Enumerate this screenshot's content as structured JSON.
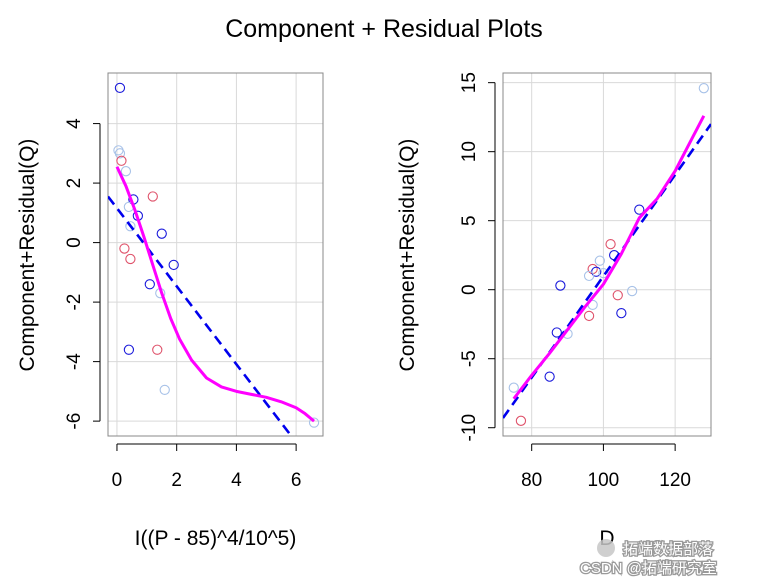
{
  "title": "Component + Residual Plots",
  "colors": {
    "blue": "#1a1adb",
    "red": "#df536b",
    "lightblue": "#a8c2e8",
    "dashed": "#0000ee",
    "smooth": "#ff00ff",
    "grid": "#d9d9d9",
    "frame": "#888888"
  },
  "watermark": {
    "line1": "拓端数据部落",
    "line2": "CSDN @拓端研究室"
  },
  "chart_data": [
    {
      "type": "scatter",
      "xlabel": "I((P - 85)^4/10^5)",
      "ylabel": "Component+Residual(Q)",
      "xlim": [
        -0.3,
        6.9
      ],
      "ylim": [
        -6.5,
        5.7
      ],
      "xticks": [
        0,
        2,
        4,
        6
      ],
      "yticks": [
        -6,
        -4,
        -2,
        0,
        2,
        4
      ],
      "points": [
        {
          "x": 0.1,
          "y": 5.2,
          "c": "blue"
        },
        {
          "x": 0.05,
          "y": 3.1,
          "c": "lightblue"
        },
        {
          "x": 0.1,
          "y": 3.0,
          "c": "lightblue"
        },
        {
          "x": 0.15,
          "y": 2.75,
          "c": "red"
        },
        {
          "x": 0.3,
          "y": 2.4,
          "c": "lightblue"
        },
        {
          "x": 0.55,
          "y": 1.45,
          "c": "blue"
        },
        {
          "x": 0.4,
          "y": 1.2,
          "c": "lightblue"
        },
        {
          "x": 0.7,
          "y": 0.9,
          "c": "blue"
        },
        {
          "x": 0.45,
          "y": 0.55,
          "c": "lightblue"
        },
        {
          "x": 0.25,
          "y": -0.2,
          "c": "red"
        },
        {
          "x": 0.45,
          "y": -0.55,
          "c": "red"
        },
        {
          "x": 1.2,
          "y": 1.55,
          "c": "red"
        },
        {
          "x": 1.5,
          "y": 0.3,
          "c": "blue"
        },
        {
          "x": 1.9,
          "y": -0.75,
          "c": "blue"
        },
        {
          "x": 1.1,
          "y": -1.4,
          "c": "blue"
        },
        {
          "x": 1.45,
          "y": -1.7,
          "c": "lightblue"
        },
        {
          "x": 0.4,
          "y": -3.6,
          "c": "blue"
        },
        {
          "x": 1.35,
          "y": -3.6,
          "c": "red"
        },
        {
          "x": 1.6,
          "y": -4.95,
          "c": "lightblue"
        },
        {
          "x": 6.6,
          "y": -6.05,
          "c": "lightblue"
        }
      ],
      "fit_line": {
        "x": [
          -0.3,
          5.8
        ],
        "y": [
          1.55,
          -6.45
        ]
      },
      "smooth": {
        "x": [
          0.0,
          0.3,
          0.6,
          0.9,
          1.2,
          1.5,
          1.8,
          2.1,
          2.5,
          3.0,
          3.5,
          4.0,
          4.5,
          5.0,
          5.5,
          6.0,
          6.3,
          6.6
        ],
        "y": [
          2.55,
          1.9,
          1.1,
          0.2,
          -0.75,
          -1.7,
          -2.55,
          -3.25,
          -3.95,
          -4.55,
          -4.85,
          -5.0,
          -5.1,
          -5.2,
          -5.35,
          -5.55,
          -5.75,
          -6.0
        ]
      }
    },
    {
      "type": "scatter",
      "xlabel": "D",
      "ylabel": "Component+Residual(Q)",
      "xlim": [
        72,
        130
      ],
      "ylim": [
        -10.6,
        15.7
      ],
      "xticks": [
        80,
        100,
        120
      ],
      "yticks": [
        -10,
        -5,
        0,
        5,
        10,
        15
      ],
      "points": [
        {
          "x": 128,
          "y": 14.6,
          "c": "lightblue"
        },
        {
          "x": 110,
          "y": 5.8,
          "c": "blue"
        },
        {
          "x": 102,
          "y": 3.3,
          "c": "red"
        },
        {
          "x": 103,
          "y": 2.5,
          "c": "blue"
        },
        {
          "x": 99,
          "y": 2.1,
          "c": "lightblue"
        },
        {
          "x": 97,
          "y": 1.5,
          "c": "red"
        },
        {
          "x": 98,
          "y": 1.3,
          "c": "blue"
        },
        {
          "x": 100,
          "y": 1.2,
          "c": "lightblue"
        },
        {
          "x": 96,
          "y": 1.0,
          "c": "lightblue"
        },
        {
          "x": 88,
          "y": 0.3,
          "c": "blue"
        },
        {
          "x": 108,
          "y": -0.1,
          "c": "lightblue"
        },
        {
          "x": 104,
          "y": -0.4,
          "c": "red"
        },
        {
          "x": 97,
          "y": -1.1,
          "c": "lightblue"
        },
        {
          "x": 105,
          "y": -1.7,
          "c": "blue"
        },
        {
          "x": 96,
          "y": -1.9,
          "c": "red"
        },
        {
          "x": 87,
          "y": -3.1,
          "c": "blue"
        },
        {
          "x": 90,
          "y": -3.2,
          "c": "lightblue"
        },
        {
          "x": 85,
          "y": -6.3,
          "c": "blue"
        },
        {
          "x": 75,
          "y": -7.1,
          "c": "lightblue"
        },
        {
          "x": 77,
          "y": -9.5,
          "c": "red"
        }
      ],
      "fit_line": {
        "x": [
          72,
          130
        ],
        "y": [
          -9.3,
          12.0
        ]
      },
      "smooth": {
        "x": [
          75,
          80,
          85,
          90,
          95,
          100,
          105,
          110,
          115,
          120,
          125,
          128
        ],
        "y": [
          -7.9,
          -6.2,
          -4.6,
          -2.9,
          -1.2,
          0.4,
          2.6,
          5.2,
          6.6,
          8.6,
          11.1,
          12.6
        ]
      }
    }
  ]
}
